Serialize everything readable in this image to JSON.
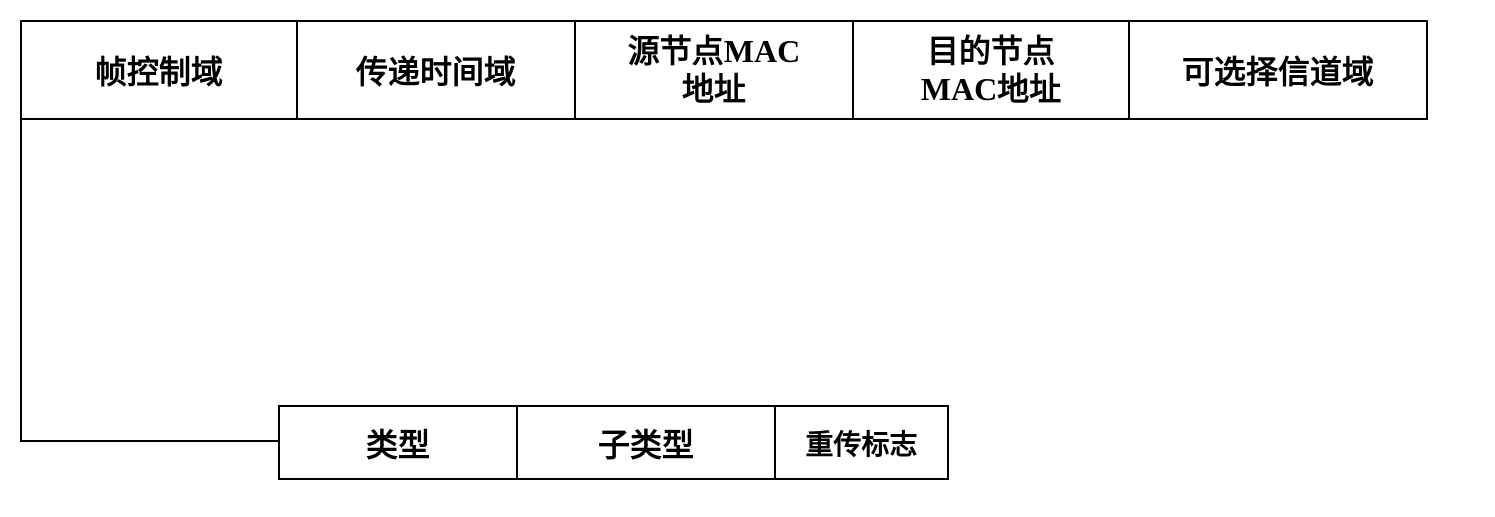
{
  "topRow": {
    "cells": [
      {
        "label": "帧控制域"
      },
      {
        "label": "传递时间域"
      },
      {
        "label": "源节点MAC\n地址"
      },
      {
        "label": "目的节点\nMAC地址"
      },
      {
        "label": "可选择信道域"
      }
    ]
  },
  "bottomRow": {
    "cells": [
      {
        "label": "类型"
      },
      {
        "label": "子类型"
      },
      {
        "label": "重传标志"
      }
    ]
  },
  "colors": {
    "border": "#000000",
    "background": "#ffffff",
    "text": "#000000"
  },
  "layout": {
    "topRowHeights": 100,
    "bottomRowHeights": 75,
    "fontSize": 32,
    "fontWeight": "bold"
  }
}
